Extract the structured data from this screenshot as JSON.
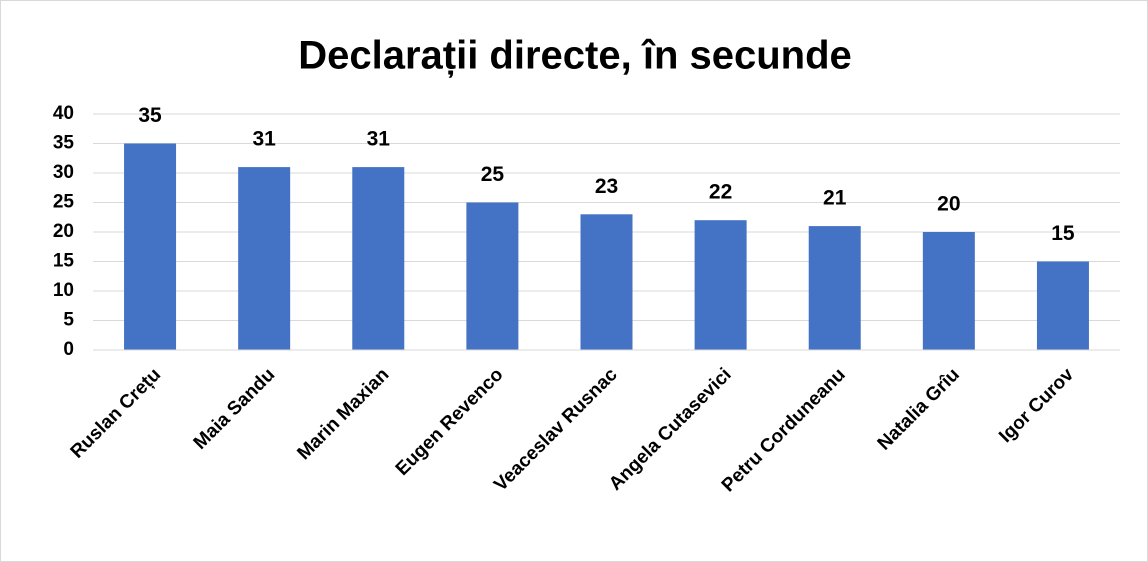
{
  "chart_data": {
    "type": "bar",
    "title": "Declarații directe, în secunde",
    "categories": [
      "Ruslan Crețu",
      "Maia Sandu",
      "Marin Maxian",
      "Eugen Revenco",
      "Veaceslav Rusnac",
      "Angela Cutasevici",
      "Petru Corduneanu",
      "Natalia Grîu",
      "Igor Curov"
    ],
    "values": [
      35,
      31,
      31,
      25,
      23,
      22,
      21,
      20,
      15
    ],
    "color": "#4472c4",
    "ylim": [
      0,
      40
    ],
    "yticks": [
      0,
      5,
      10,
      15,
      20,
      25,
      30,
      35,
      40
    ],
    "grid": true
  }
}
